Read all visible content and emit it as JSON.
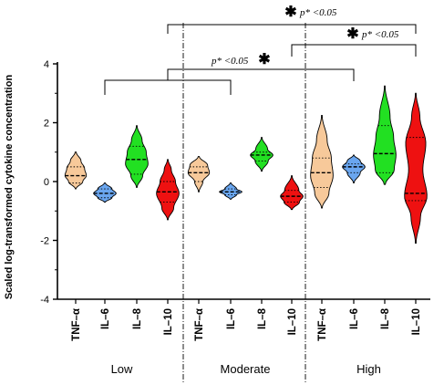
{
  "chart_data": {
    "type": "violin",
    "ylabel": "Scaled log-transformed cytokine concentration",
    "ylim": [
      -4,
      4
    ],
    "yticks": [
      -4,
      -2,
      0,
      2,
      4
    ],
    "groups": [
      {
        "label": "Low",
        "categories": [
          "TNF–α",
          "IL–6",
          "IL–8",
          "IL–10"
        ]
      },
      {
        "label": "Moderate",
        "categories": [
          "TNF–α",
          "IL–6",
          "IL–8",
          "IL–10"
        ]
      },
      {
        "label": "High",
        "categories": [
          "TNF–α",
          "IL–6",
          "IL–8",
          "IL–10"
        ]
      }
    ],
    "colors": {
      "TNF–α": "#f7c99a",
      "IL–6": "#6aa6ef",
      "IL–8": "#22e022",
      "IL–10": "#ee1111"
    },
    "series": [
      {
        "group": "Low",
        "category": "TNF–α",
        "min": -0.25,
        "max": 1.0,
        "median": 0.2,
        "q1": -0.05,
        "q3": 0.5,
        "profile": [
          [
            -0.25,
            0.03
          ],
          [
            0.0,
            0.6
          ],
          [
            0.2,
            0.9
          ],
          [
            0.45,
            0.75
          ],
          [
            0.7,
            0.45
          ],
          [
            1.0,
            0.05
          ]
        ]
      },
      {
        "group": "Low",
        "category": "IL–6",
        "min": -0.7,
        "max": -0.05,
        "median": -0.4,
        "q1": -0.55,
        "q3": -0.25,
        "profile": [
          [
            -0.7,
            0.05
          ],
          [
            -0.55,
            0.6
          ],
          [
            -0.4,
            0.95
          ],
          [
            -0.25,
            0.6
          ],
          [
            -0.05,
            0.05
          ]
        ]
      },
      {
        "group": "Low",
        "category": "IL–8",
        "min": -0.2,
        "max": 1.9,
        "median": 0.75,
        "q1": 0.25,
        "q3": 1.2,
        "profile": [
          [
            -0.2,
            0.03
          ],
          [
            0.2,
            0.5
          ],
          [
            0.6,
            0.95
          ],
          [
            1.0,
            0.8
          ],
          [
            1.4,
            0.45
          ],
          [
            1.9,
            0.03
          ]
        ]
      },
      {
        "group": "Low",
        "category": "IL–10",
        "min": -1.3,
        "max": 0.75,
        "median": -0.35,
        "q1": -0.7,
        "q3": 0.0,
        "profile": [
          [
            -1.3,
            0.03
          ],
          [
            -0.9,
            0.5
          ],
          [
            -0.4,
            0.95
          ],
          [
            0.0,
            0.65
          ],
          [
            0.4,
            0.3
          ],
          [
            0.75,
            0.03
          ]
        ]
      },
      {
        "group": "Moderate",
        "category": "TNF–α",
        "min": -0.35,
        "max": 0.85,
        "median": 0.3,
        "q1": 0.0,
        "q3": 0.5,
        "profile": [
          [
            -0.35,
            0.03
          ],
          [
            0.0,
            0.35
          ],
          [
            0.3,
            0.9
          ],
          [
            0.55,
            0.75
          ],
          [
            0.85,
            0.05
          ]
        ]
      },
      {
        "group": "Moderate",
        "category": "IL–6",
        "min": -0.6,
        "max": -0.05,
        "median": -0.35,
        "q1": -0.45,
        "q3": -0.25,
        "profile": [
          [
            -0.6,
            0.05
          ],
          [
            -0.45,
            0.5
          ],
          [
            -0.35,
            0.95
          ],
          [
            -0.25,
            0.5
          ],
          [
            -0.05,
            0.05
          ]
        ]
      },
      {
        "group": "Moderate",
        "category": "IL–8",
        "min": 0.35,
        "max": 1.5,
        "median": 0.9,
        "q1": 0.7,
        "q3": 1.0,
        "profile": [
          [
            0.35,
            0.03
          ],
          [
            0.7,
            0.55
          ],
          [
            0.9,
            0.95
          ],
          [
            1.1,
            0.5
          ],
          [
            1.5,
            0.03
          ]
        ]
      },
      {
        "group": "Moderate",
        "category": "IL–10",
        "min": -0.95,
        "max": 0.2,
        "median": -0.5,
        "q1": -0.7,
        "q3": -0.3,
        "profile": [
          [
            -0.95,
            0.05
          ],
          [
            -0.7,
            0.65
          ],
          [
            -0.5,
            0.95
          ],
          [
            -0.3,
            0.6
          ],
          [
            0.2,
            0.03
          ]
        ]
      },
      {
        "group": "High",
        "category": "TNF–α",
        "min": -0.9,
        "max": 2.25,
        "median": 0.3,
        "q1": -0.2,
        "q3": 0.8,
        "profile": [
          [
            -0.9,
            0.03
          ],
          [
            -0.4,
            0.6
          ],
          [
            0.2,
            0.95
          ],
          [
            0.8,
            0.8
          ],
          [
            1.4,
            0.45
          ],
          [
            2.25,
            0.03
          ]
        ]
      },
      {
        "group": "High",
        "category": "IL–6",
        "min": -0.05,
        "max": 0.9,
        "median": 0.5,
        "q1": 0.3,
        "q3": 0.6,
        "profile": [
          [
            -0.05,
            0.03
          ],
          [
            0.3,
            0.55
          ],
          [
            0.5,
            0.95
          ],
          [
            0.7,
            0.55
          ],
          [
            0.9,
            0.03
          ]
        ]
      },
      {
        "group": "High",
        "category": "IL–8",
        "min": -0.1,
        "max": 3.25,
        "median": 0.95,
        "q1": 0.3,
        "q3": 1.9,
        "profile": [
          [
            -0.1,
            0.05
          ],
          [
            0.4,
            0.8
          ],
          [
            0.9,
            0.95
          ],
          [
            1.5,
            0.75
          ],
          [
            2.2,
            0.45
          ],
          [
            3.25,
            0.03
          ]
        ]
      },
      {
        "group": "High",
        "category": "IL–10",
        "min": -2.1,
        "max": 3.0,
        "median": -0.4,
        "q1": -0.65,
        "q3": 1.5,
        "profile": [
          [
            -2.1,
            0.03
          ],
          [
            -1.2,
            0.4
          ],
          [
            -0.5,
            0.95
          ],
          [
            0.4,
            0.6
          ],
          [
            1.3,
            0.85
          ],
          [
            2.2,
            0.35
          ],
          [
            3.0,
            0.03
          ]
        ]
      }
    ],
    "significance": [
      {
        "label": "p* <0.05",
        "star": "*",
        "from": [
          "Low",
          "IL–10"
        ],
        "to": [
          "High",
          "IL–10"
        ]
      },
      {
        "label": "p* <0.05",
        "star": "*",
        "from": [
          "Moderate",
          "IL–10"
        ],
        "to": [
          "High",
          "IL–10"
        ]
      },
      {
        "label": "p* <0.05",
        "star": "*",
        "bracket_low": [
          "Low",
          "IL–6"
        ],
        "bracket_high": [
          "Moderate",
          "IL–6"
        ],
        "bracket_right": [
          "High",
          "IL–6"
        ]
      }
    ]
  }
}
